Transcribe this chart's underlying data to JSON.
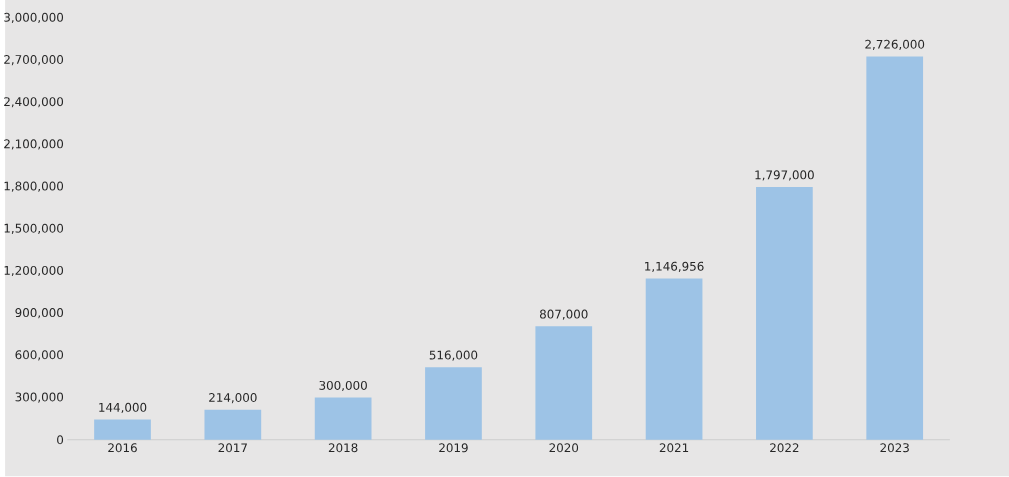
{
  "chart_data": {
    "type": "bar",
    "categories": [
      "2016",
      "2017",
      "2018",
      "2019",
      "2020",
      "2021",
      "2022",
      "2023"
    ],
    "values": [
      144000,
      214000,
      300000,
      516000,
      807000,
      1146956,
      1797000,
      2726000
    ],
    "value_labels": [
      "144,000",
      "214,000",
      "300,000",
      "516,000",
      "807,000",
      "1,146,956",
      "1,797,000",
      "2,726,000"
    ],
    "color": "#9dc3e6",
    "ylim": [
      0,
      3000000
    ],
    "grid": false,
    "yticks": [
      0,
      {
        "value": 300000,
        "label": "300,000"
      },
      {
        "value": 600000,
        "label": "600,000"
      },
      {
        "value": 900000,
        "label": "900,000"
      },
      {
        "value": 1200000,
        "label": "1,200,000"
      },
      {
        "value": 1500000,
        "label": "1,500,000"
      },
      {
        "value": 1800000,
        "label": "1,800,000"
      },
      {
        "value": 2100000,
        "label": "2,100,000"
      },
      {
        "value": 2400000,
        "label": "2,400,000"
      },
      {
        "value": 2700000,
        "label": "2,700,000"
      },
      {
        "value": 3000000,
        "label": "3,000,000"
      }
    ]
  }
}
